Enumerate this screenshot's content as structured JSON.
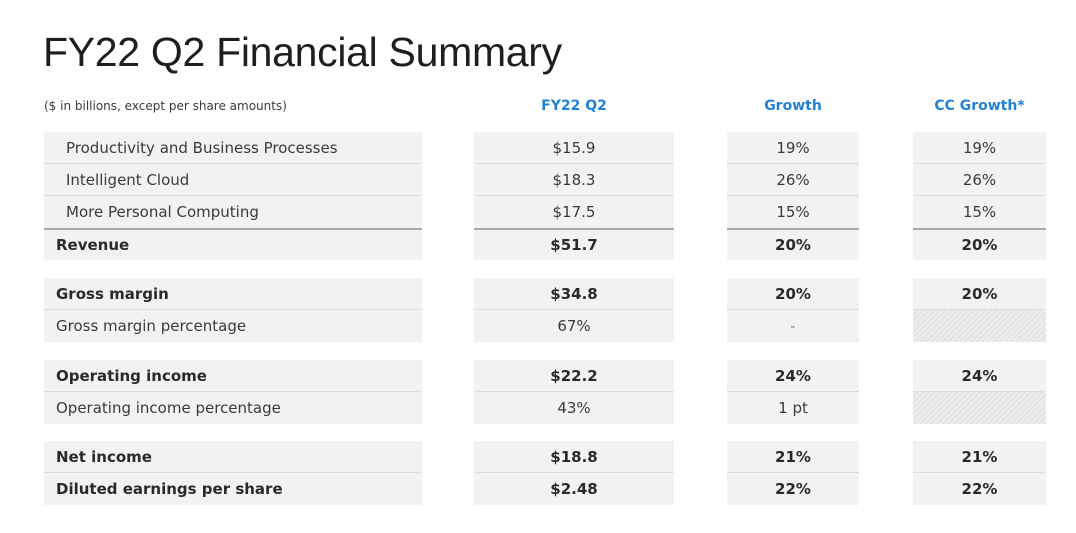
{
  "title": "FY22 Q2 Financial Summary",
  "note": "($ in billions, except per share amounts)",
  "columns": {
    "fy22q2": "FY22 Q2",
    "growth": "Growth",
    "cc_growth": "CC Growth*"
  },
  "rows": [
    {
      "label": "Productivity and Business Processes",
      "fy22q2": "$15.9",
      "growth": "19%",
      "cc_growth": "19%"
    },
    {
      "label": "Intelligent Cloud",
      "fy22q2": "$18.3",
      "growth": "26%",
      "cc_growth": "26%"
    },
    {
      "label": "More Personal Computing",
      "fy22q2": "$17.5",
      "growth": "15%",
      "cc_growth": "15%"
    },
    {
      "label": "Revenue",
      "fy22q2": "$51.7",
      "growth": "20%",
      "cc_growth": "20%"
    },
    {
      "label": "Gross margin",
      "fy22q2": "$34.8",
      "growth": "20%",
      "cc_growth": "20%"
    },
    {
      "label": "Gross margin percentage",
      "fy22q2": "67%",
      "growth": "-",
      "cc_growth": ""
    },
    {
      "label": "Operating income",
      "fy22q2": "$22.2",
      "growth": "24%",
      "cc_growth": "24%"
    },
    {
      "label": "Operating income percentage",
      "fy22q2": "43%",
      "growth": "1 pt",
      "cc_growth": ""
    },
    {
      "label": "Net income",
      "fy22q2": "$18.8",
      "growth": "21%",
      "cc_growth": "21%"
    },
    {
      "label": "Diluted earnings per share",
      "fy22q2": "$2.48",
      "growth": "22%",
      "cc_growth": "22%"
    }
  ],
  "colors": {
    "header_blue": "#1f82d6",
    "cell_bg": "#f2f2f2"
  }
}
